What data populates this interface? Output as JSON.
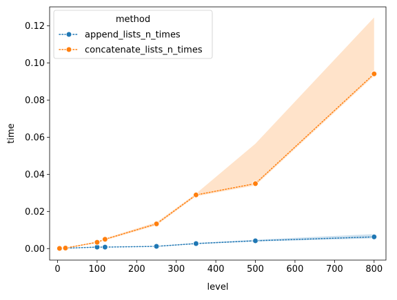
{
  "chart_data": {
    "type": "line",
    "xlabel": "level",
    "ylabel": "time",
    "xlim": [
      -20,
      830
    ],
    "ylim": [
      -0.0062,
      0.1302
    ],
    "xticks": [
      0,
      100,
      200,
      300,
      400,
      500,
      600,
      700,
      800
    ],
    "xtick_labels": [
      "0",
      "100",
      "200",
      "300",
      "400",
      "500",
      "600",
      "700",
      "800"
    ],
    "yticks": [
      0.0,
      0.02,
      0.04,
      0.06,
      0.08,
      0.1,
      0.12
    ],
    "ytick_labels": [
      "0.00",
      "0.02",
      "0.04",
      "0.06",
      "0.08",
      "0.10",
      "0.12"
    ],
    "grid": false,
    "legend": {
      "title": "method",
      "placement": "upper-left"
    },
    "series": [
      {
        "name": "append_lists_n_times",
        "color": "#1f77b4",
        "marker": "circle",
        "linestyle": "dotted",
        "x": [
          5,
          20,
          100,
          120,
          250,
          350,
          500,
          800
        ],
        "y": [
          0.0001,
          0.0002,
          0.0008,
          0.0008,
          0.0012,
          0.0027,
          0.0042,
          0.0063
        ],
        "ci_lower": [
          0.0001,
          0.0002,
          0.0007,
          0.0007,
          0.0011,
          0.0024,
          0.0038,
          0.0055
        ],
        "ci_upper": [
          0.0001,
          0.0002,
          0.0009,
          0.0009,
          0.0014,
          0.003,
          0.0048,
          0.0078
        ]
      },
      {
        "name": "concatenate_lists_n_times",
        "color": "#ff7f0e",
        "marker": "circle",
        "linestyle": "dotted",
        "x": [
          5,
          20,
          100,
          120,
          250,
          350,
          500,
          800
        ],
        "y": [
          0.0001,
          0.0003,
          0.0034,
          0.005,
          0.0133,
          0.0289,
          0.035,
          0.0941
        ],
        "ci_lower": [
          0.0001,
          0.0002,
          0.003,
          0.0045,
          0.0125,
          0.0282,
          0.034,
          0.093
        ],
        "ci_upper": [
          0.0001,
          0.0004,
          0.0038,
          0.0055,
          0.0142,
          0.0296,
          0.0565,
          0.1245
        ]
      }
    ]
  }
}
